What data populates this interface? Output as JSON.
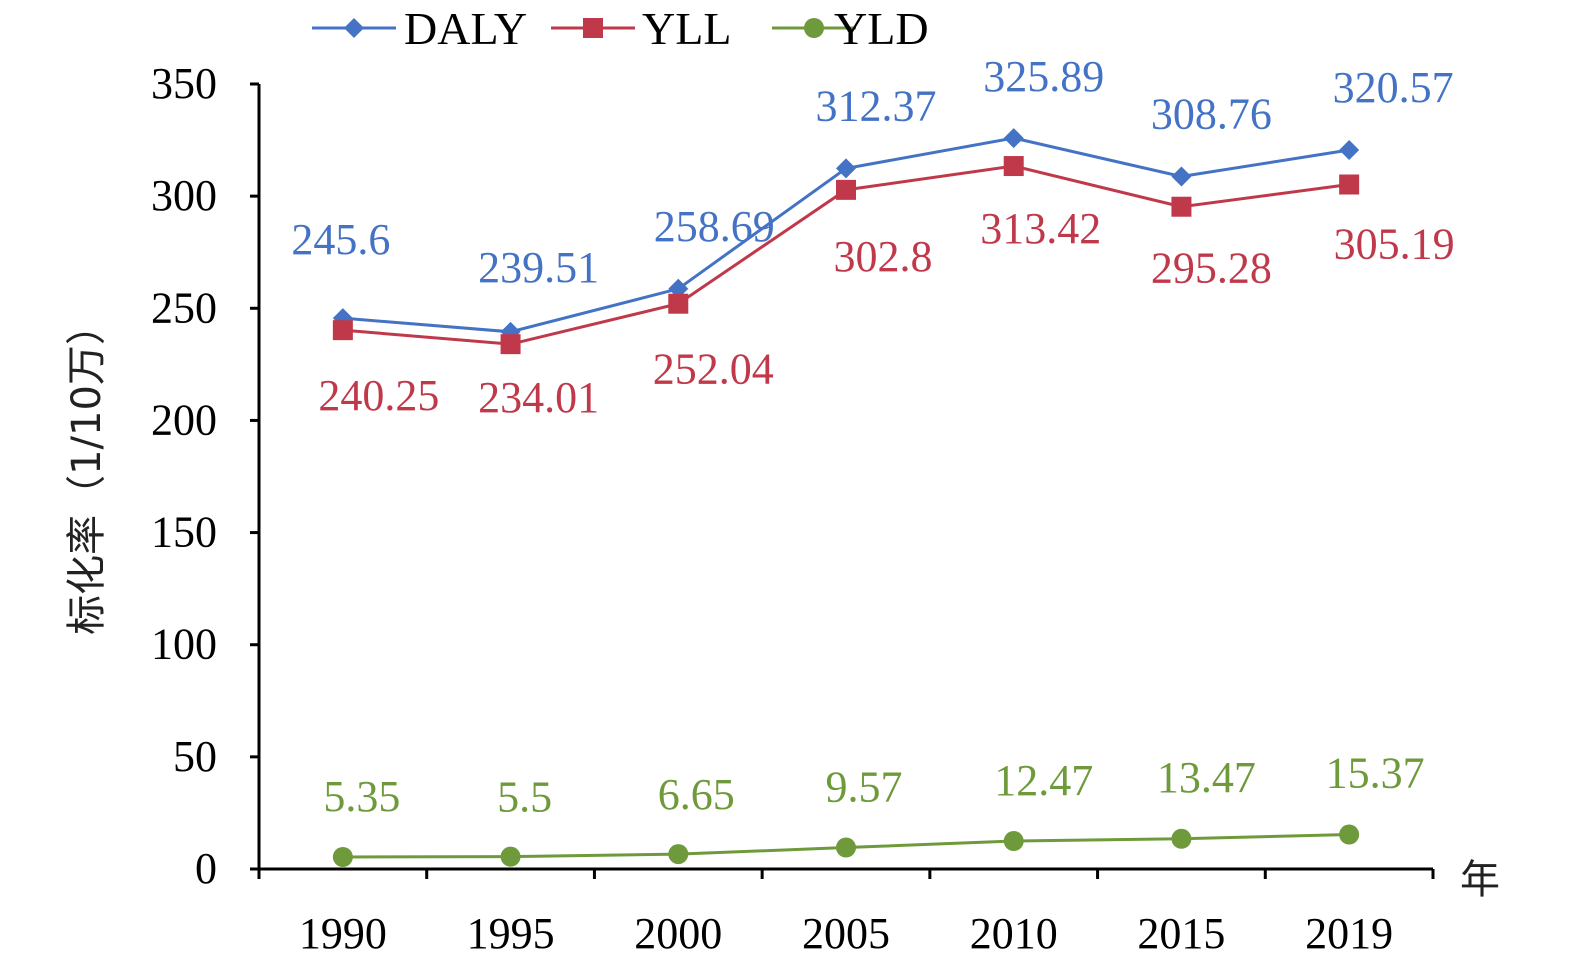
{
  "chart_data": {
    "type": "line",
    "categories": [
      "1990",
      "1995",
      "2000",
      "2005",
      "2010",
      "2015",
      "2019"
    ],
    "ylabel": "标化率（1/10万）",
    "xlabel": "年",
    "ylim": [
      0,
      350
    ],
    "yticks": [
      0,
      50,
      100,
      150,
      200,
      250,
      300,
      350
    ],
    "grid": false,
    "legend": "top-left",
    "series": [
      {
        "name": "DALY",
        "color": "#4472C4",
        "marker": "diamond",
        "values": [
          245.6,
          239.51,
          258.69,
          312.37,
          325.89,
          308.76,
          320.57
        ],
        "labels": [
          "245.6",
          "239.51",
          "258.69",
          "312.37",
          "325.89",
          "308.76",
          "320.57"
        ]
      },
      {
        "name": "YLL",
        "color": "#C0394B",
        "marker": "square",
        "values": [
          240.25,
          234.01,
          252.04,
          302.8,
          313.42,
          295.28,
          305.19
        ],
        "labels": [
          "240.25",
          "234.01",
          "252.04",
          "302.8",
          "313.42",
          "295.28",
          "305.19"
        ]
      },
      {
        "name": "YLD",
        "color": "#6E9A3C",
        "marker": "circle",
        "values": [
          5.35,
          5.5,
          6.65,
          9.57,
          12.47,
          13.47,
          15.37
        ],
        "labels": [
          "5.35",
          "5.5",
          "6.65",
          "9.57",
          "12.47",
          "13.47",
          "15.37"
        ]
      }
    ]
  }
}
